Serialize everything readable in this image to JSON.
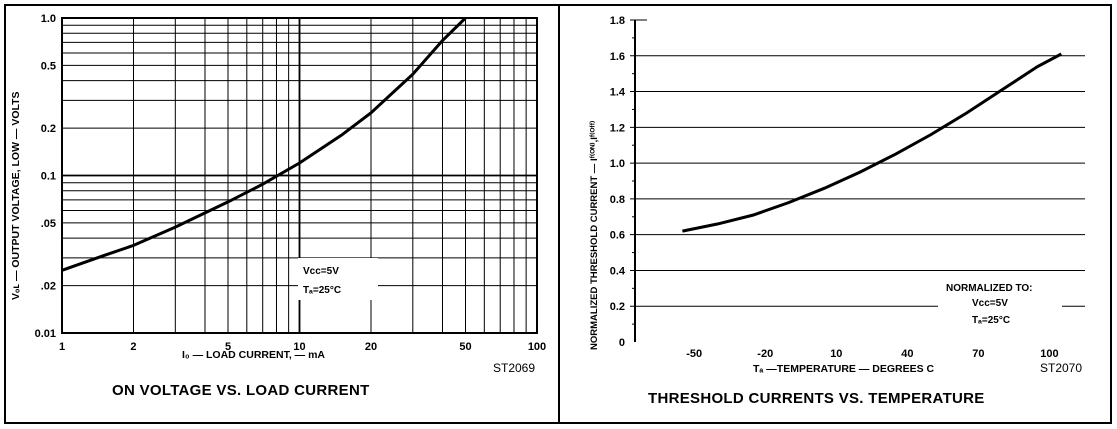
{
  "chart_data": [
    {
      "type": "line",
      "title": "ON VOLTAGE VS. LOAD CURRENT",
      "xlabel": "I₀ —  LOAD CURRENT, — mA",
      "ylabel": "Vₒʟ — OUTPUT VOLTAGE, LOW — VOLTS",
      "xscale": "log",
      "yscale": "log",
      "xlim": [
        1,
        100
      ],
      "ylim": [
        0.01,
        1.0
      ],
      "x_ticks": [
        1,
        2,
        5,
        10,
        20,
        50,
        100
      ],
      "x_tick_labels": [
        "1",
        "2",
        "5",
        "10",
        "20",
        "50",
        "100"
      ],
      "y_ticks": [
        0.01,
        0.02,
        0.05,
        0.1,
        0.2,
        0.5,
        1.0
      ],
      "y_tick_labels": [
        "0.01",
        ".02",
        ".05",
        "0.1",
        "0.2",
        "0.5",
        "1.0"
      ],
      "grid": true,
      "figure_code": "ST2069",
      "conditions": [
        "Vcc=5V",
        "Tₐ=25°C"
      ],
      "series": [
        {
          "x": [
            1.0,
            1.5,
            2.0,
            3.0,
            5.0,
            7.0,
            10.0,
            15.0,
            20.0,
            30.0,
            40.0,
            50.0
          ],
          "y": [
            0.025,
            0.031,
            0.036,
            0.047,
            0.068,
            0.088,
            0.12,
            0.18,
            0.25,
            0.44,
            0.72,
            1.0
          ]
        }
      ]
    },
    {
      "type": "line",
      "title": "THRESHOLD CURRENTS  VS. TEMPERATURE",
      "xlabel": "Tₐ  —TEMPERATURE — DEGREES  C",
      "ylabel": "NORMALIZED THRESHOLD CURRENT — Iᶠ⁽ᴼᴺ⁾,Iᶠ⁽ᴼᶠᶠ⁾",
      "xlim": [
        -75,
        115
      ],
      "ylim": [
        0,
        1.8
      ],
      "x_ticks": [
        -50,
        -20,
        10,
        40,
        70,
        100
      ],
      "x_tick_labels": [
        "-50",
        "-20",
        "10",
        "40",
        "70",
        "100"
      ],
      "y_ticks": [
        0,
        0.2,
        0.4,
        0.6,
        0.8,
        1.0,
        1.2,
        1.4,
        1.6,
        1.8
      ],
      "y_tick_labels": [
        "0",
        "0.2",
        "0.4",
        "0.6",
        "0.8",
        "1.0",
        "1.2",
        "1.4",
        "1.6",
        "1.8"
      ],
      "grid": true,
      "figure_code": "ST2070",
      "conditions": [
        "NORMALIZED TO:",
        "Vcc=5V",
        "Tₐ=25°C"
      ],
      "series": [
        {
          "x": [
            -55,
            -40,
            -25,
            -10,
            5,
            20,
            35,
            50,
            65,
            80,
            95,
            105
          ],
          "y": [
            0.62,
            0.66,
            0.71,
            0.78,
            0.86,
            0.95,
            1.05,
            1.16,
            1.28,
            1.41,
            1.54,
            1.61
          ]
        }
      ]
    }
  ]
}
